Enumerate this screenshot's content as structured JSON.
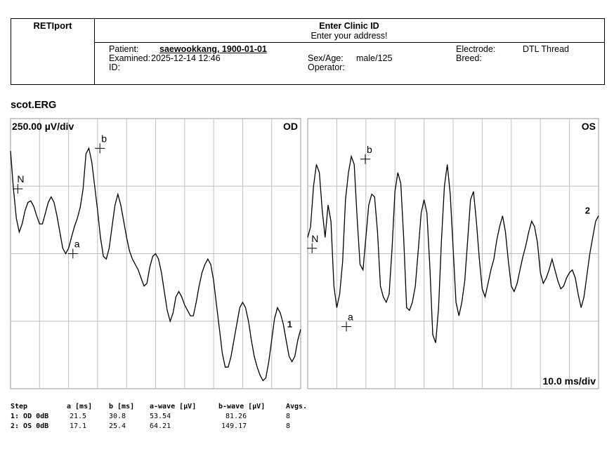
{
  "header": {
    "app_name": "RETIport",
    "clinic_id": "Enter Clinic ID",
    "address": "Enter your address!",
    "patient_label": "Patient:",
    "patient_value": "saewookkang, 1900-01-01",
    "examined_label": "Examined:",
    "examined_value": "2025-12-14 12:46",
    "id_label": "ID:",
    "id_value": "",
    "sexage_label": "Sex/Age:",
    "sexage_value": "male/125",
    "operator_label": "Operator:",
    "operator_value": "",
    "electrode_label": "Electrode:",
    "electrode_value": "DTL Thread",
    "breed_label": "Breed:",
    "breed_value": ""
  },
  "section_title": "scot.ERG",
  "chart_data": [
    {
      "type": "line",
      "eye": "OD",
      "y_scale_label": "250.00 µV/div",
      "trace_number": "1",
      "x_range_ms": [
        0,
        100
      ],
      "y_range_uV": [
        -500,
        500
      ],
      "grid": true,
      "x": [
        0,
        1,
        2,
        3,
        4,
        5,
        6,
        7,
        8,
        9,
        10,
        11,
        12,
        13,
        14,
        15,
        16,
        17,
        18,
        19,
        20,
        21,
        22,
        23,
        24,
        25,
        26,
        27,
        28,
        29,
        30,
        31,
        32,
        33,
        34,
        35,
        36,
        37,
        38,
        39,
        40,
        41,
        42,
        43,
        44,
        45,
        46,
        47,
        48,
        49,
        50,
        51,
        52,
        53,
        54,
        55,
        56,
        57,
        58,
        59,
        60,
        61,
        62,
        63,
        64,
        65,
        66,
        67,
        68,
        69,
        70,
        71,
        72,
        73,
        74,
        75,
        76,
        77,
        78,
        79,
        80,
        81,
        82,
        83,
        84,
        85,
        86,
        87,
        88,
        89,
        90,
        91,
        92,
        93,
        94,
        95,
        96,
        97,
        98,
        99,
        100
      ],
      "y": [
        380,
        240,
        130,
        80,
        110,
        160,
        190,
        195,
        175,
        140,
        110,
        110,
        150,
        190,
        210,
        190,
        140,
        80,
        20,
        0,
        20,
        60,
        100,
        130,
        170,
        240,
        370,
        390,
        340,
        250,
        160,
        60,
        -10,
        -20,
        20,
        100,
        180,
        220,
        180,
        120,
        60,
        10,
        -20,
        -40,
        -60,
        -90,
        -120,
        -110,
        -50,
        -10,
        0,
        -20,
        -70,
        -140,
        -210,
        -250,
        -220,
        -160,
        -140,
        -160,
        -190,
        -210,
        -230,
        -230,
        -180,
        -120,
        -70,
        -40,
        -20,
        -40,
        -100,
        -190,
        -280,
        -370,
        -420,
        -420,
        -380,
        -320,
        -260,
        -200,
        -180,
        -200,
        -250,
        -320,
        -380,
        -420,
        -450,
        -470,
        -460,
        -400,
        -320,
        -240,
        -200,
        -220,
        -260,
        -320,
        -380,
        -400,
        -380,
        -320,
        -280
      ],
      "markers": [
        {
          "label": "N",
          "x": 2.5,
          "y": 240
        },
        {
          "label": "a",
          "x": 21.5,
          "y": 0
        },
        {
          "label": "b",
          "x": 30.8,
          "y": 390
        }
      ]
    },
    {
      "type": "line",
      "eye": "OS",
      "x_scale_label": "10.0 ms/div",
      "trace_number": "2",
      "x_range_ms": [
        0,
        100
      ],
      "y_range_uV": [
        -500,
        500
      ],
      "grid": true,
      "x": [
        0,
        1,
        2,
        3,
        4,
        5,
        6,
        7,
        8,
        9,
        10,
        11,
        12,
        13,
        14,
        15,
        16,
        17,
        18,
        19,
        20,
        21,
        22,
        23,
        24,
        25,
        26,
        27,
        28,
        29,
        30,
        31,
        32,
        33,
        34,
        35,
        36,
        37,
        38,
        39,
        40,
        41,
        42,
        43,
        44,
        45,
        46,
        47,
        48,
        49,
        50,
        51,
        52,
        53,
        54,
        55,
        56,
        57,
        58,
        59,
        60,
        61,
        62,
        63,
        64,
        65,
        66,
        67,
        68,
        69,
        70,
        71,
        72,
        73,
        74,
        75,
        76,
        77,
        78,
        79,
        80,
        81,
        82,
        83,
        84,
        85,
        86,
        87,
        88,
        89,
        90,
        91,
        92,
        93,
        94,
        95,
        96,
        97,
        98,
        99,
        100
      ],
      "y": [
        60,
        100,
        250,
        330,
        300,
        160,
        60,
        180,
        120,
        -120,
        -200,
        -150,
        -30,
        200,
        300,
        360,
        330,
        130,
        -40,
        -60,
        60,
        180,
        220,
        210,
        80,
        -120,
        -160,
        -180,
        -150,
        20,
        230,
        300,
        260,
        60,
        -200,
        -210,
        -180,
        -120,
        10,
        150,
        200,
        150,
        -50,
        -300,
        -330,
        -200,
        50,
        250,
        330,
        220,
        20,
        -180,
        -230,
        -180,
        -100,
        50,
        200,
        230,
        120,
        -20,
        -130,
        -160,
        -110,
        -60,
        -20,
        50,
        100,
        140,
        80,
        -30,
        -120,
        -140,
        -110,
        -60,
        -10,
        30,
        80,
        120,
        100,
        40,
        -70,
        -110,
        -90,
        -60,
        -20,
        -60,
        -100,
        -130,
        -120,
        -90,
        -70,
        -60,
        -90,
        -150,
        -200,
        -160,
        -80,
        0,
        60,
        120,
        140
      ],
      "markers": [
        {
          "label": "N",
          "x": 1.5,
          "y": 20
        },
        {
          "label": "a",
          "x": 13.3,
          "y": -270
        },
        {
          "label": "b",
          "x": 19.8,
          "y": 350
        }
      ]
    }
  ],
  "results": {
    "headers": [
      "Step",
      "a [ms]",
      "b [ms]",
      "a-wave [µV]",
      "b-wave [µV]",
      "Avgs."
    ],
    "rows": [
      [
        "1: OD 0dB",
        "21.5",
        "30.8",
        "53.54",
        "81.26",
        "8"
      ],
      [
        "2: OS 0dB",
        "17.1",
        "25.4",
        "64.21",
        "149.17",
        "8"
      ]
    ]
  }
}
